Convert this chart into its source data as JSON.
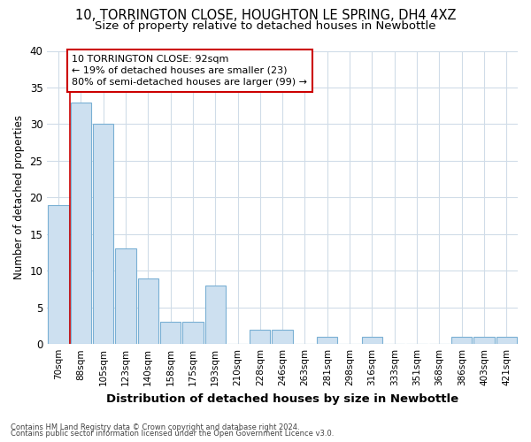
{
  "title1": "10, TORRINGTON CLOSE, HOUGHTON LE SPRING, DH4 4XZ",
  "title2": "Size of property relative to detached houses in Newbottle",
  "xlabel": "Distribution of detached houses by size in Newbottle",
  "ylabel": "Number of detached properties",
  "categories": [
    "70sqm",
    "88sqm",
    "105sqm",
    "123sqm",
    "140sqm",
    "158sqm",
    "175sqm",
    "193sqm",
    "210sqm",
    "228sqm",
    "246sqm",
    "263sqm",
    "281sqm",
    "298sqm",
    "316sqm",
    "333sqm",
    "351sqm",
    "368sqm",
    "386sqm",
    "403sqm",
    "421sqm"
  ],
  "values": [
    19,
    33,
    30,
    13,
    9,
    3,
    3,
    8,
    0,
    2,
    2,
    0,
    1,
    0,
    1,
    0,
    0,
    0,
    1,
    1,
    1
  ],
  "bar_color": "#cde0f0",
  "bar_edge_color": "#7ab0d4",
  "red_line_x": 0.5,
  "annotation_title": "10 TORRINGTON CLOSE: 92sqm",
  "annotation_line1": "← 19% of detached houses are smaller (23)",
  "annotation_line2": "80% of semi-detached houses are larger (99) →",
  "annotation_box_color": "#cc0000",
  "ylim": [
    0,
    40
  ],
  "yticks": [
    0,
    5,
    10,
    15,
    20,
    25,
    30,
    35,
    40
  ],
  "footer1": "Contains HM Land Registry data © Crown copyright and database right 2024.",
  "footer2": "Contains public sector information licensed under the Open Government Licence v3.0.",
  "bg_color": "#ffffff",
  "grid_color": "#d0dce8",
  "title_fontsize": 10.5,
  "subtitle_fontsize": 9.5,
  "ylabel_fontsize": 8.5,
  "xlabel_fontsize": 9.5
}
